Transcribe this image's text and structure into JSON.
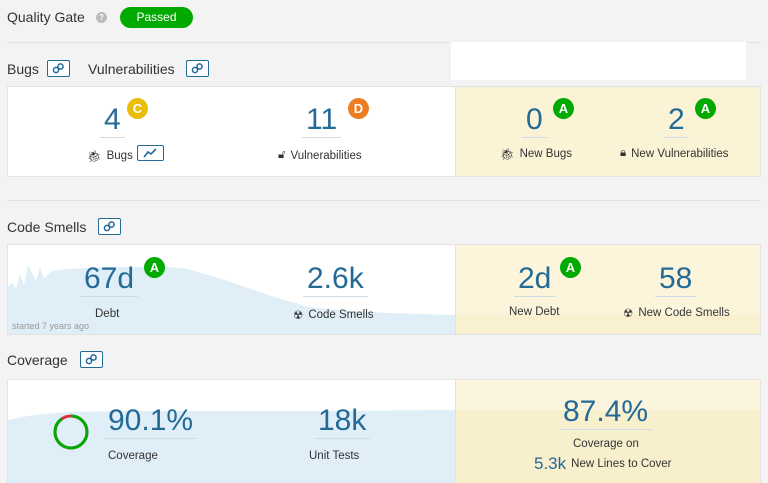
{
  "quality_gate": {
    "title": "Quality Gate",
    "help_icon": "?",
    "status": "Passed"
  },
  "bugs_section": {
    "bugs_title": "Bugs",
    "vuln_title": "Vulnerabilities",
    "bugs": {
      "value": "4",
      "rating": "C",
      "label": "Bugs"
    },
    "vulnerabilities": {
      "value": "11",
      "rating": "D",
      "label": "Vulnerabilities"
    },
    "new_bugs": {
      "value": "0",
      "rating": "A",
      "label": "New Bugs"
    },
    "new_vulnerabilities": {
      "value": "2",
      "rating": "A",
      "label": "New Vulnerabilities"
    }
  },
  "code_smells_section": {
    "title": "Code Smells",
    "debt": {
      "value": "67d",
      "rating": "A",
      "label": "Debt"
    },
    "code_smells": {
      "value": "2.6k",
      "label": "Code Smells"
    },
    "new_debt": {
      "value": "2d",
      "rating": "A",
      "label": "New Debt"
    },
    "new_code_smells": {
      "value": "58",
      "label": "New Code Smells"
    },
    "started": "started 7 years ago"
  },
  "coverage_section": {
    "title": "Coverage",
    "coverage": {
      "value": "90.1%",
      "label": "Coverage",
      "fraction": 0.901
    },
    "unit_tests": {
      "value": "18k",
      "label": "Unit Tests"
    },
    "new_coverage": {
      "value": "87.4%",
      "label": "Coverage on",
      "lines_value": "5.3k",
      "lines_label": "New Lines to Cover"
    }
  },
  "colors": {
    "link": "#236a97",
    "passed": "#00aa00",
    "rating_a": "#00aa00",
    "rating_c": "#eabe06",
    "rating_d": "#ed7d20",
    "leak": "#fbf3d5"
  }
}
